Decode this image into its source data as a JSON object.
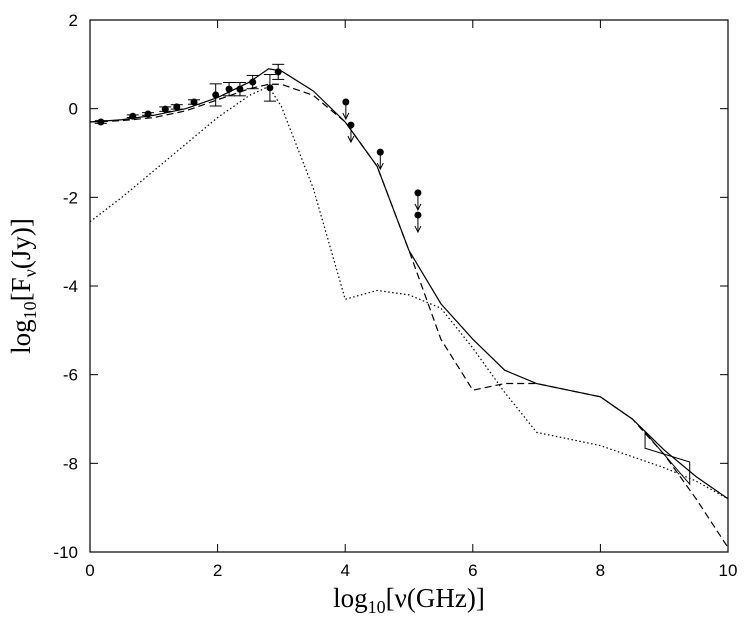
{
  "chart_data": {
    "type": "line",
    "xlabel": [
      "log",
      "10",
      "[ν(GHz)]"
    ],
    "ylabel": [
      "log",
      "10",
      "[F",
      "ν",
      "(Jy)]"
    ],
    "xlim": [
      0,
      10
    ],
    "ylim": [
      -10,
      2
    ],
    "xticks": [
      0,
      2,
      4,
      6,
      8,
      10
    ],
    "yticks": [
      -10,
      -8,
      -6,
      -4,
      -2,
      0,
      2
    ],
    "x": [
      0,
      0.5,
      1,
      1.5,
      2,
      2.5,
      2.8,
      3,
      3.5,
      4,
      4.5,
      5,
      5.5,
      6,
      6.5,
      7,
      7.5,
      8,
      8.5,
      9,
      9.5,
      10
    ],
    "series": [
      {
        "style": "solid",
        "color": "#000000",
        "values": [
          -0.3,
          -0.25,
          -0.15,
          0.0,
          0.25,
          0.6,
          0.9,
          0.85,
          0.4,
          -0.3,
          -1.3,
          -3.2,
          -4.4,
          -5.2,
          -5.9,
          -6.2,
          -6.35,
          -6.5,
          -7.0,
          -7.7,
          -8.3,
          -8.8
        ]
      },
      {
        "style": "dashed",
        "color": "#000000",
        "values": [
          -0.3,
          -0.27,
          -0.2,
          -0.05,
          0.2,
          0.45,
          0.55,
          0.55,
          0.3,
          -0.3,
          -1.3,
          -3.2,
          -5.2,
          -6.35,
          -6.2,
          -6.2,
          -6.35,
          -6.5,
          -7.0,
          -7.8,
          -8.8,
          -9.9
        ]
      },
      {
        "style": "dotted",
        "color": "#000000",
        "values": [
          -2.55,
          -2.0,
          -1.4,
          -0.8,
          -0.2,
          0.3,
          0.5,
          0.05,
          -1.8,
          -4.3,
          -4.1,
          -4.2,
          -4.5,
          -5.4,
          -6.4,
          -7.3,
          -7.45,
          -7.6,
          -7.85,
          -8.1,
          -8.4,
          -8.8
        ]
      }
    ],
    "points": {
      "x": [
        0.17,
        0.67,
        0.91,
        1.18,
        1.36,
        1.63,
        1.97,
        2.18,
        2.35,
        2.55,
        2.82,
        2.95
      ],
      "values": [
        -0.3,
        -0.17,
        -0.12,
        -0.01,
        0.04,
        0.15,
        0.31,
        0.44,
        0.44,
        0.6,
        0.47,
        0.83
      ],
      "errors": [
        0.03,
        0.03,
        0.03,
        0.05,
        0.05,
        0.05,
        0.25,
        0.15,
        0.15,
        0.15,
        0.3,
        0.17
      ]
    },
    "upper_limits": {
      "x": [
        4.01,
        4.09,
        4.55,
        5.14,
        5.14
      ],
      "values": [
        0.15,
        -0.37,
        -0.98,
        -1.9,
        -2.4
      ]
    },
    "bowtie": {
      "x": [
        8.7,
        9.4,
        9.4,
        8.7
      ],
      "values": [
        -7.3,
        -8.47,
        -7.97,
        -7.66
      ]
    }
  }
}
